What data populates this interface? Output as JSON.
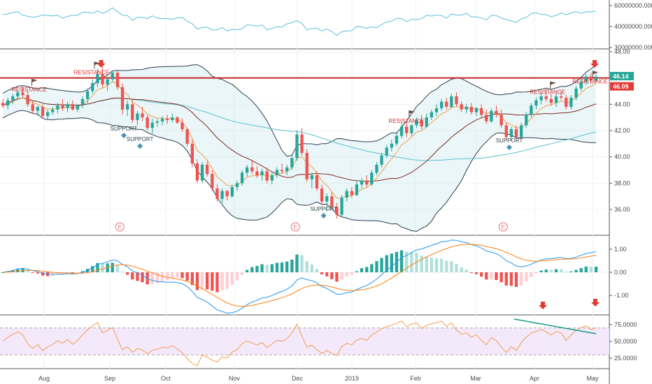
{
  "chart_data": {
    "type": "candlestick-multi-pane",
    "x_axis": {
      "labels": [
        "Aug",
        "Sep",
        "Oct",
        "Nov",
        "Dec",
        "2019",
        "Feb",
        "Mar",
        "Apr",
        "May"
      ]
    },
    "price_pane": {
      "y_ticks": [
        "48.00",
        "46.00",
        "44.00",
        "42.00",
        "40.00",
        "38.00",
        "36.00"
      ],
      "ylim": [
        34.5,
        48.0
      ],
      "resistance_level": 46.0,
      "last_price_label": "46.14",
      "level_label": "46.09",
      "annotations": [
        {
          "text": "RESISTANCE",
          "date": "2018-07-25",
          "price": 45.3
        },
        {
          "text": "RESISTANCE",
          "date": "2018-08-25",
          "price": 46.6
        },
        {
          "text": "SUPPORT",
          "date": "2018-09-10",
          "price": 42.0
        },
        {
          "text": "SUPPORT",
          "date": "2018-09-18",
          "price": 41.2
        },
        {
          "text": "SUPPORT",
          "date": "2018-12-18",
          "price": 35.9
        },
        {
          "text": "RESISTANCE",
          "date": "2019-01-28",
          "price": 42.9
        },
        {
          "text": "SUPPORT",
          "date": "2019-03-20",
          "price": 41.1
        },
        {
          "text": "RESISTANCE",
          "date": "2019-04-08",
          "price": 45.1
        },
        {
          "text": "RESISTANCE",
          "date": "2019-04-29",
          "price": 45.9
        }
      ],
      "earnings_markers": [
        {
          "text": "E",
          "date": "2018-09-08"
        },
        {
          "text": "E",
          "date": "2018-12-04"
        },
        {
          "text": "E",
          "date": "2019-03-17"
        }
      ],
      "candles": [
        [
          44.1,
          44.4,
          43.7,
          43.9
        ],
        [
          43.9,
          44.5,
          43.6,
          44.3
        ],
        [
          44.3,
          44.8,
          44.0,
          44.6
        ],
        [
          44.6,
          45.1,
          44.3,
          44.9
        ],
        [
          44.9,
          45.4,
          44.5,
          44.7
        ],
        [
          44.7,
          45.0,
          43.8,
          44.0
        ],
        [
          44.0,
          44.3,
          43.3,
          43.5
        ],
        [
          43.5,
          43.9,
          43.1,
          43.8
        ],
        [
          43.8,
          44.0,
          42.9,
          43.1
        ],
        [
          43.1,
          43.6,
          42.8,
          43.4
        ],
        [
          43.4,
          43.8,
          43.2,
          43.6
        ],
        [
          43.6,
          44.1,
          43.3,
          43.9
        ],
        [
          43.9,
          44.4,
          43.5,
          43.7
        ],
        [
          43.7,
          44.2,
          43.4,
          44.0
        ],
        [
          44.0,
          44.3,
          43.5,
          43.6
        ],
        [
          43.6,
          44.0,
          43.4,
          43.9
        ],
        [
          43.9,
          44.6,
          43.7,
          44.4
        ],
        [
          44.4,
          45.2,
          44.1,
          45.0
        ],
        [
          45.0,
          45.9,
          44.8,
          45.6
        ],
        [
          45.6,
          46.7,
          45.3,
          46.3
        ],
        [
          46.3,
          46.8,
          45.2,
          45.5
        ],
        [
          45.5,
          46.1,
          45.0,
          45.9
        ],
        [
          45.9,
          46.5,
          45.7,
          46.4
        ],
        [
          46.4,
          46.6,
          45.1,
          45.3
        ],
        [
          45.3,
          45.6,
          43.2,
          43.6
        ],
        [
          43.6,
          44.3,
          43.1,
          44.0
        ],
        [
          44.0,
          44.4,
          42.6,
          42.8
        ],
        [
          42.8,
          43.5,
          42.4,
          43.3
        ],
        [
          43.3,
          43.8,
          42.7,
          43.0
        ],
        [
          43.0,
          43.2,
          42.0,
          42.2
        ],
        [
          42.2,
          42.9,
          41.8,
          42.6
        ],
        [
          42.6,
          42.9,
          42.3,
          42.7
        ],
        [
          42.7,
          43.1,
          42.4,
          42.9
        ],
        [
          42.9,
          43.2,
          42.5,
          42.8
        ],
        [
          42.8,
          43.3,
          42.6,
          43.0
        ],
        [
          43.0,
          43.1,
          42.5,
          42.6
        ],
        [
          42.6,
          42.9,
          41.9,
          42.1
        ],
        [
          42.1,
          42.2,
          40.8,
          41.0
        ],
        [
          41.0,
          41.3,
          39.2,
          39.5
        ],
        [
          39.5,
          39.8,
          38.0,
          38.2
        ],
        [
          38.2,
          39.6,
          38.0,
          39.4
        ],
        [
          39.4,
          39.7,
          38.5,
          38.7
        ],
        [
          38.7,
          39.0,
          37.4,
          37.6
        ],
        [
          37.6,
          37.9,
          36.6,
          36.8
        ],
        [
          36.8,
          37.6,
          36.5,
          37.4
        ],
        [
          37.4,
          37.5,
          36.7,
          37.0
        ],
        [
          37.0,
          37.9,
          36.9,
          37.7
        ],
        [
          37.7,
          38.2,
          37.4,
          38.0
        ],
        [
          38.0,
          39.0,
          37.8,
          38.8
        ],
        [
          38.8,
          39.4,
          38.5,
          39.2
        ],
        [
          39.2,
          39.7,
          38.7,
          38.9
        ],
        [
          38.9,
          39.3,
          38.4,
          38.6
        ],
        [
          38.6,
          39.1,
          38.2,
          38.9
        ],
        [
          38.9,
          39.2,
          38.0,
          38.2
        ],
        [
          38.2,
          38.8,
          37.9,
          38.6
        ],
        [
          38.6,
          39.2,
          38.4,
          39.0
        ],
        [
          39.0,
          39.5,
          38.7,
          38.9
        ],
        [
          38.9,
          39.4,
          38.6,
          39.2
        ],
        [
          39.2,
          40.1,
          39.0,
          39.9
        ],
        [
          39.9,
          42.0,
          39.7,
          41.7
        ],
        [
          41.7,
          42.2,
          40.1,
          40.3
        ],
        [
          40.3,
          40.6,
          38.1,
          38.3
        ],
        [
          38.3,
          38.8,
          37.6,
          38.6
        ],
        [
          38.6,
          38.9,
          37.4,
          37.6
        ],
        [
          37.6,
          37.9,
          36.3,
          36.6
        ],
        [
          36.6,
          37.2,
          35.9,
          37.0
        ],
        [
          37.0,
          37.3,
          36.0,
          36.2
        ],
        [
          36.2,
          36.5,
          35.3,
          35.6
        ],
        [
          35.6,
          37.1,
          35.5,
          36.9
        ],
        [
          36.9,
          37.6,
          36.6,
          37.4
        ],
        [
          37.4,
          37.7,
          36.9,
          37.1
        ],
        [
          37.1,
          38.2,
          37.0,
          37.9
        ],
        [
          37.9,
          38.4,
          37.6,
          38.2
        ],
        [
          38.2,
          38.6,
          37.7,
          37.9
        ],
        [
          37.9,
          39.0,
          37.8,
          38.8
        ],
        [
          38.8,
          39.6,
          38.6,
          39.4
        ],
        [
          39.4,
          40.3,
          39.2,
          40.1
        ],
        [
          40.1,
          40.9,
          39.9,
          40.7
        ],
        [
          40.7,
          41.3,
          40.4,
          41.0
        ],
        [
          41.0,
          41.9,
          40.8,
          41.6
        ],
        [
          41.6,
          42.6,
          41.4,
          42.3
        ],
        [
          42.3,
          42.7,
          41.5,
          41.8
        ],
        [
          41.8,
          42.5,
          41.6,
          42.4
        ],
        [
          42.4,
          43.0,
          42.2,
          42.8
        ],
        [
          42.8,
          43.2,
          42.1,
          42.3
        ],
        [
          42.3,
          43.3,
          42.2,
          43.0
        ],
        [
          43.0,
          43.6,
          42.8,
          43.4
        ],
        [
          43.4,
          44.0,
          43.1,
          43.7
        ],
        [
          43.7,
          44.4,
          43.5,
          44.2
        ],
        [
          44.2,
          44.5,
          43.6,
          43.8
        ],
        [
          43.8,
          44.8,
          43.7,
          44.6
        ],
        [
          44.6,
          44.9,
          43.8,
          44.0
        ],
        [
          44.0,
          44.2,
          43.4,
          43.6
        ],
        [
          43.6,
          44.0,
          43.3,
          43.8
        ],
        [
          43.8,
          44.1,
          43.2,
          43.4
        ],
        [
          43.4,
          43.8,
          43.1,
          43.7
        ],
        [
          43.7,
          44.0,
          43.0,
          43.2
        ],
        [
          43.2,
          43.6,
          42.5,
          42.7
        ],
        [
          42.7,
          43.7,
          42.6,
          43.5
        ],
        [
          43.5,
          43.9,
          43.0,
          43.2
        ],
        [
          43.2,
          43.6,
          42.2,
          42.4
        ],
        [
          42.4,
          42.6,
          41.3,
          41.5
        ],
        [
          41.5,
          42.3,
          41.2,
          42.1
        ],
        [
          42.1,
          42.4,
          41.3,
          41.5
        ],
        [
          41.5,
          42.6,
          41.4,
          42.4
        ],
        [
          42.4,
          43.4,
          42.2,
          43.2
        ],
        [
          43.2,
          44.1,
          43.0,
          43.9
        ],
        [
          43.9,
          44.5,
          43.6,
          44.3
        ],
        [
          44.3,
          44.9,
          44.0,
          44.6
        ],
        [
          44.6,
          45.2,
          44.2,
          44.4
        ],
        [
          44.4,
          44.8,
          43.9,
          44.1
        ],
        [
          44.1,
          44.8,
          43.8,
          44.6
        ],
        [
          44.6,
          45.0,
          44.3,
          44.5
        ],
        [
          44.5,
          44.7,
          43.6,
          43.8
        ],
        [
          43.8,
          44.7,
          43.6,
          44.5
        ],
        [
          44.5,
          45.4,
          44.3,
          45.2
        ],
        [
          45.2,
          46.0,
          45.0,
          45.7
        ],
        [
          45.7,
          46.3,
          45.5,
          46.1
        ],
        [
          46.1,
          46.4,
          45.6,
          45.8
        ],
        [
          45.8,
          46.3,
          45.7,
          46.1
        ]
      ]
    },
    "volume_pane": {
      "y_ticks": [
        "60000000.0000",
        "40000000.0000",
        "30000000.0000"
      ]
    },
    "macd_pane": {
      "y_ticks": [
        "1.00",
        "0.00",
        "-1.00"
      ]
    },
    "rsi_pane": {
      "y_ticks": [
        "75.0000",
        "50.0000",
        "25.0000"
      ]
    }
  }
}
